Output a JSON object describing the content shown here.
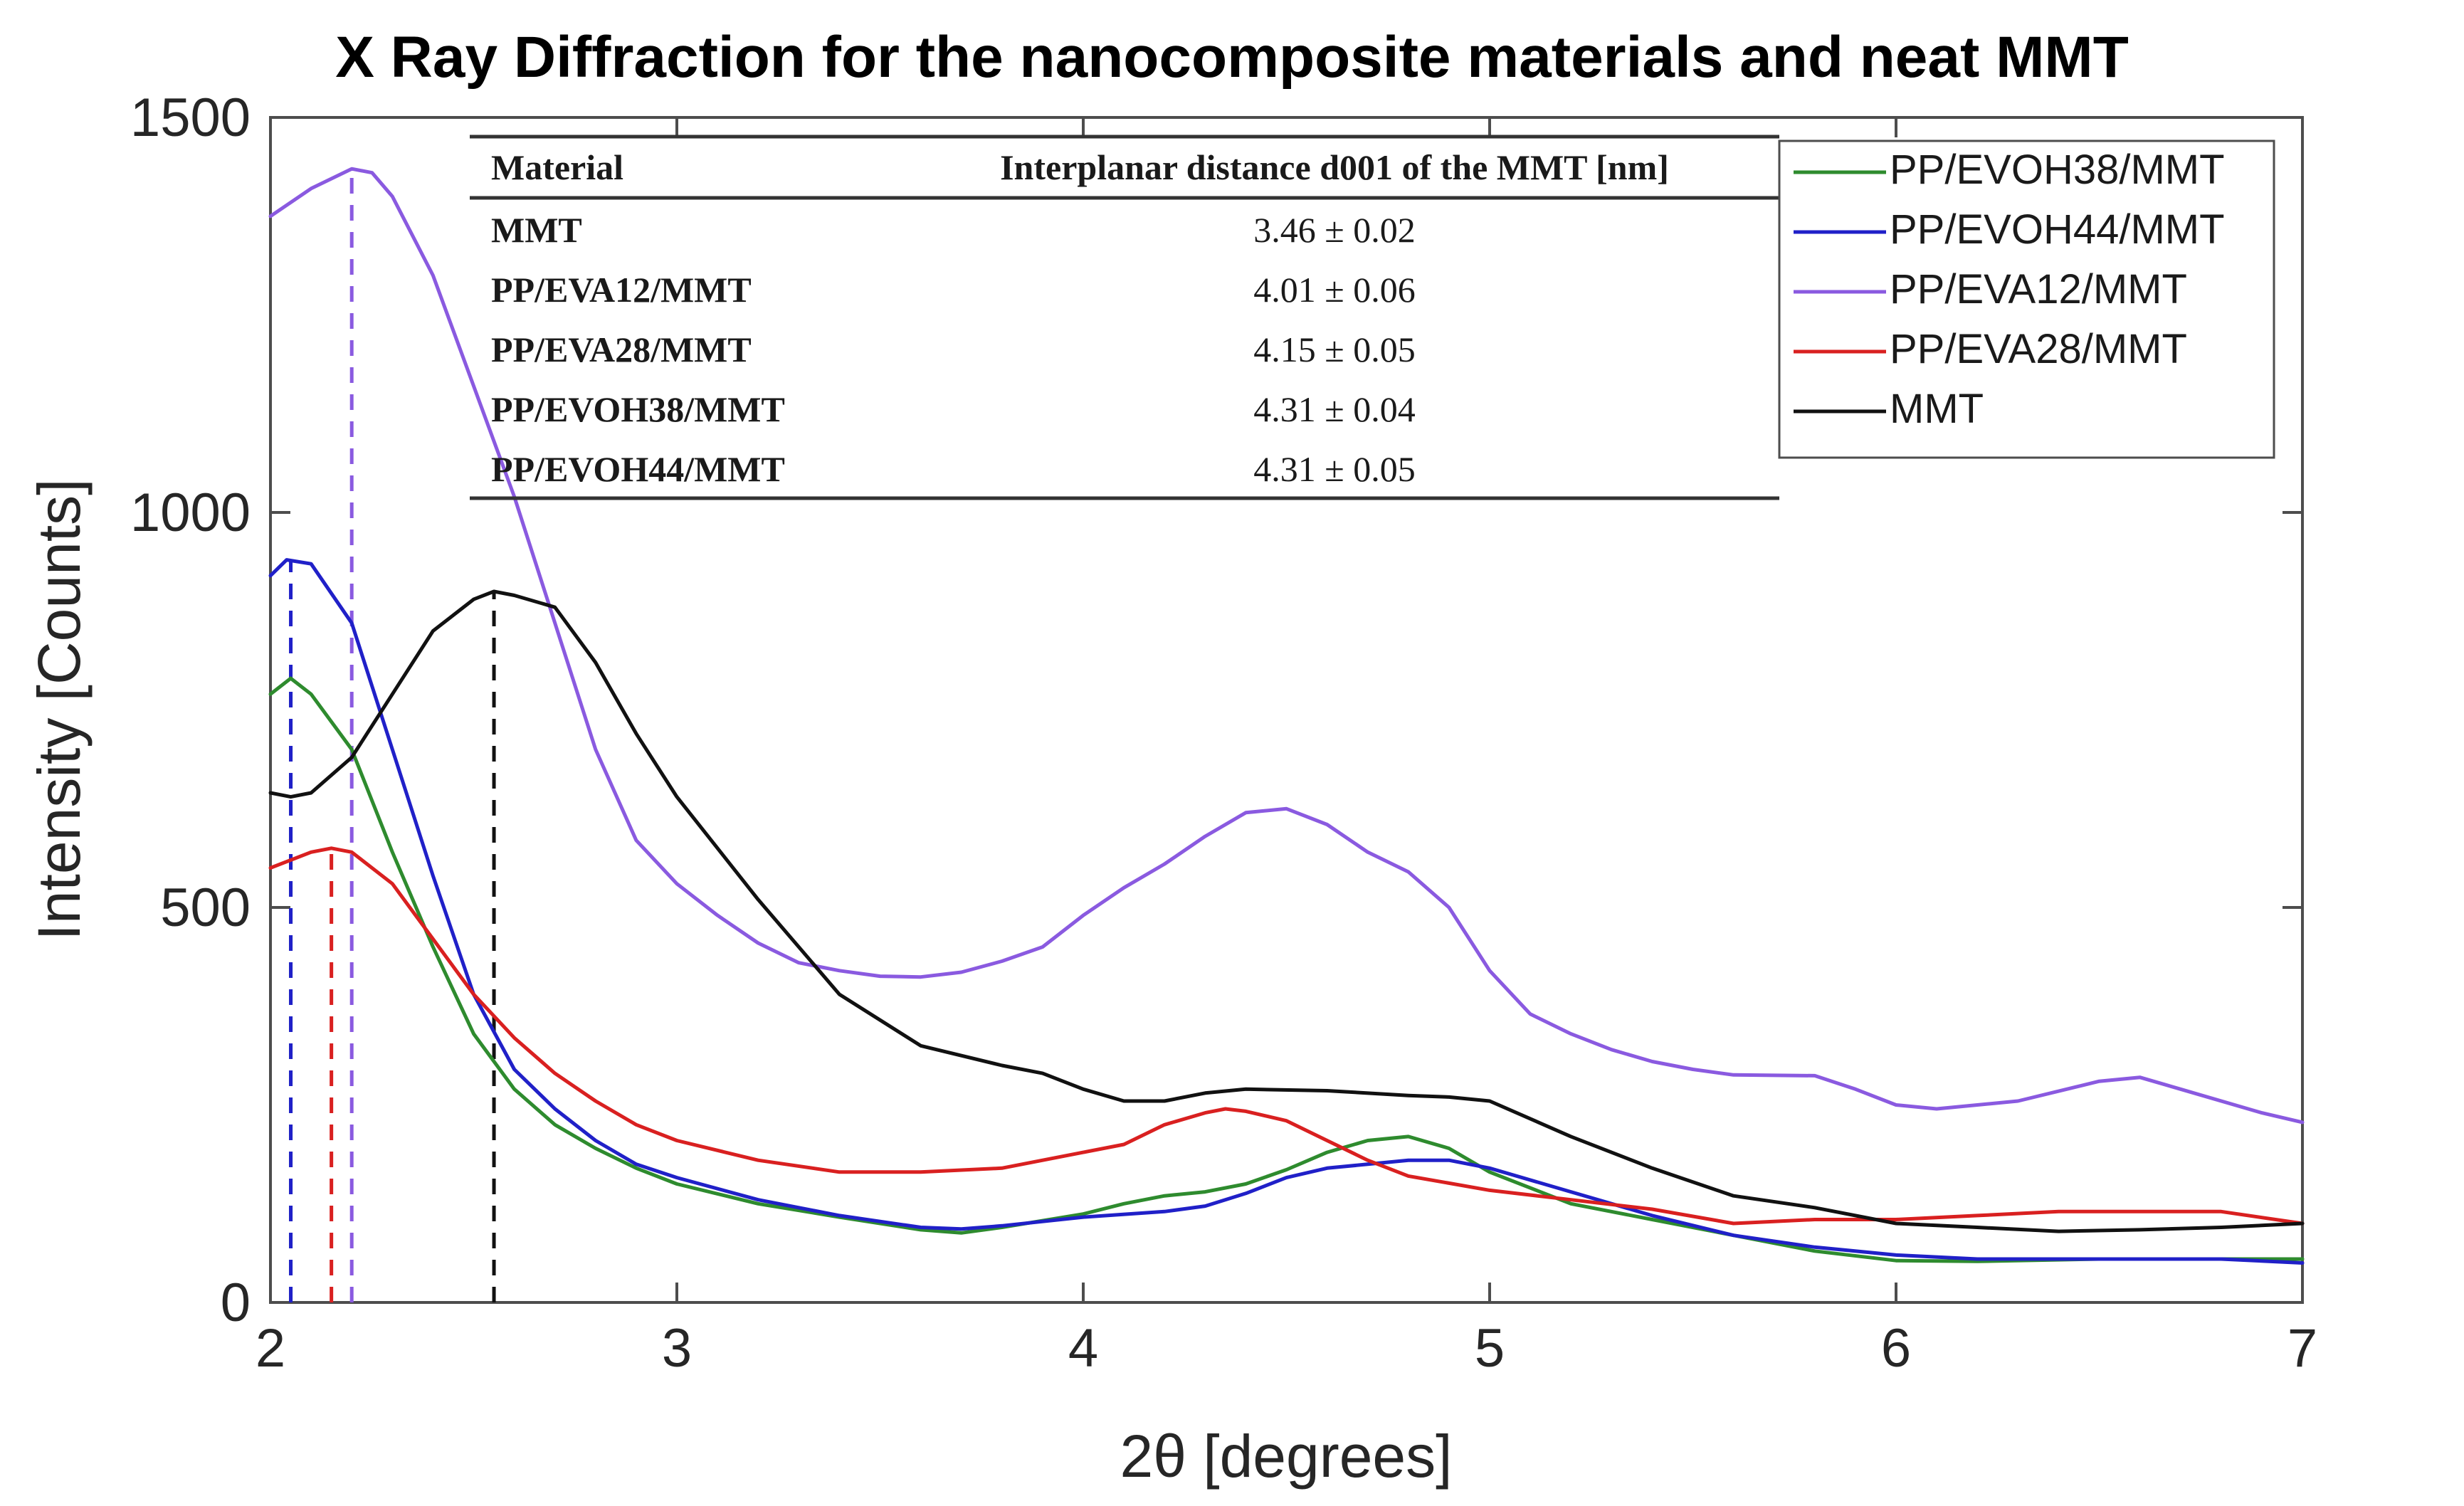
{
  "chart_data": {
    "type": "line",
    "title": "X Ray Diffraction for the nanocomposite materials and neat MMT",
    "xlabel": "2θ [degrees]",
    "ylabel": "Intensity [Counts]",
    "xlim": [
      2,
      7
    ],
    "ylim": [
      0,
      1500
    ],
    "xticks": [
      2,
      3,
      4,
      5,
      6,
      7
    ],
    "yticks": [
      0,
      500,
      1000,
      1500
    ],
    "grid": false,
    "legend_position": "top-right",
    "series": [
      {
        "name": "PP/EVOH38/MMT",
        "color": "#2e8b2e",
        "peak_x": 2.05,
        "points": [
          [
            2.0,
            770
          ],
          [
            2.05,
            790
          ],
          [
            2.1,
            770
          ],
          [
            2.2,
            700
          ],
          [
            2.3,
            570
          ],
          [
            2.4,
            450
          ],
          [
            2.5,
            340
          ],
          [
            2.6,
            270
          ],
          [
            2.7,
            225
          ],
          [
            2.8,
            195
          ],
          [
            2.9,
            170
          ],
          [
            3.0,
            150
          ],
          [
            3.2,
            125
          ],
          [
            3.4,
            108
          ],
          [
            3.6,
            92
          ],
          [
            3.7,
            88
          ],
          [
            3.8,
            95
          ],
          [
            4.0,
            112
          ],
          [
            4.1,
            125
          ],
          [
            4.2,
            135
          ],
          [
            4.3,
            140
          ],
          [
            4.4,
            150
          ],
          [
            4.5,
            168
          ],
          [
            4.6,
            190
          ],
          [
            4.7,
            205
          ],
          [
            4.8,
            210
          ],
          [
            4.9,
            195
          ],
          [
            5.0,
            165
          ],
          [
            5.2,
            125
          ],
          [
            5.4,
            105
          ],
          [
            5.6,
            85
          ],
          [
            5.8,
            65
          ],
          [
            6.0,
            53
          ],
          [
            6.2,
            52
          ],
          [
            6.5,
            55
          ],
          [
            6.8,
            55
          ],
          [
            7.0,
            55
          ]
        ]
      },
      {
        "name": "PP/EVOH44/MMT",
        "color": "#2020c8",
        "peak_x": 2.05,
        "points": [
          [
            2.0,
            920
          ],
          [
            2.04,
            940
          ],
          [
            2.1,
            935
          ],
          [
            2.2,
            860
          ],
          [
            2.3,
            700
          ],
          [
            2.4,
            540
          ],
          [
            2.5,
            390
          ],
          [
            2.6,
            295
          ],
          [
            2.7,
            245
          ],
          [
            2.8,
            205
          ],
          [
            2.9,
            175
          ],
          [
            3.0,
            158
          ],
          [
            3.2,
            130
          ],
          [
            3.4,
            110
          ],
          [
            3.6,
            95
          ],
          [
            3.7,
            93
          ],
          [
            3.8,
            97
          ],
          [
            4.0,
            108
          ],
          [
            4.2,
            115
          ],
          [
            4.3,
            122
          ],
          [
            4.4,
            138
          ],
          [
            4.5,
            158
          ],
          [
            4.6,
            170
          ],
          [
            4.7,
            175
          ],
          [
            4.8,
            180
          ],
          [
            4.9,
            180
          ],
          [
            5.0,
            170
          ],
          [
            5.2,
            140
          ],
          [
            5.4,
            110
          ],
          [
            5.6,
            85
          ],
          [
            5.8,
            70
          ],
          [
            6.0,
            60
          ],
          [
            6.2,
            55
          ],
          [
            6.5,
            55
          ],
          [
            6.8,
            55
          ],
          [
            7.0,
            50
          ]
        ]
      },
      {
        "name": "PP/EVA12/MMT",
        "color": "#8a5ae0",
        "peak_x": 2.2,
        "points": [
          [
            2.0,
            1375
          ],
          [
            2.1,
            1410
          ],
          [
            2.2,
            1435
          ],
          [
            2.25,
            1430
          ],
          [
            2.3,
            1400
          ],
          [
            2.4,
            1300
          ],
          [
            2.5,
            1160
          ],
          [
            2.6,
            1020
          ],
          [
            2.7,
            860
          ],
          [
            2.8,
            700
          ],
          [
            2.9,
            585
          ],
          [
            3.0,
            530
          ],
          [
            3.1,
            490
          ],
          [
            3.2,
            455
          ],
          [
            3.3,
            430
          ],
          [
            3.4,
            420
          ],
          [
            3.5,
            413
          ],
          [
            3.6,
            412
          ],
          [
            3.7,
            418
          ],
          [
            3.8,
            432
          ],
          [
            3.9,
            450
          ],
          [
            4.0,
            490
          ],
          [
            4.1,
            525
          ],
          [
            4.2,
            555
          ],
          [
            4.3,
            590
          ],
          [
            4.4,
            620
          ],
          [
            4.5,
            625
          ],
          [
            4.6,
            605
          ],
          [
            4.7,
            570
          ],
          [
            4.8,
            545
          ],
          [
            4.9,
            500
          ],
          [
            5.0,
            420
          ],
          [
            5.1,
            365
          ],
          [
            5.2,
            340
          ],
          [
            5.3,
            320
          ],
          [
            5.4,
            305
          ],
          [
            5.5,
            295
          ],
          [
            5.6,
            288
          ],
          [
            5.8,
            287
          ],
          [
            5.9,
            270
          ],
          [
            6.0,
            250
          ],
          [
            6.1,
            245
          ],
          [
            6.3,
            255
          ],
          [
            6.5,
            280
          ],
          [
            6.6,
            285
          ],
          [
            6.7,
            270
          ],
          [
            6.9,
            240
          ],
          [
            7.0,
            228
          ]
        ]
      },
      {
        "name": "PP/EVA28/MMT",
        "color": "#d92020",
        "peak_x": 2.15,
        "points": [
          [
            2.0,
            550
          ],
          [
            2.1,
            570
          ],
          [
            2.15,
            575
          ],
          [
            2.2,
            570
          ],
          [
            2.3,
            530
          ],
          [
            2.4,
            460
          ],
          [
            2.5,
            390
          ],
          [
            2.6,
            335
          ],
          [
            2.7,
            290
          ],
          [
            2.8,
            255
          ],
          [
            2.9,
            225
          ],
          [
            3.0,
            205
          ],
          [
            3.2,
            180
          ],
          [
            3.4,
            165
          ],
          [
            3.6,
            165
          ],
          [
            3.8,
            170
          ],
          [
            3.9,
            180
          ],
          [
            4.0,
            190
          ],
          [
            4.1,
            200
          ],
          [
            4.2,
            225
          ],
          [
            4.3,
            240
          ],
          [
            4.35,
            245
          ],
          [
            4.4,
            242
          ],
          [
            4.5,
            230
          ],
          [
            4.6,
            205
          ],
          [
            4.7,
            180
          ],
          [
            4.8,
            160
          ],
          [
            5.0,
            142
          ],
          [
            5.2,
            130
          ],
          [
            5.4,
            118
          ],
          [
            5.6,
            100
          ],
          [
            5.8,
            105
          ],
          [
            6.0,
            105
          ],
          [
            6.2,
            110
          ],
          [
            6.4,
            115
          ],
          [
            6.6,
            115
          ],
          [
            6.8,
            115
          ],
          [
            7.0,
            100
          ]
        ]
      },
      {
        "name": "MMT",
        "color": "#111111",
        "peak_x": 2.55,
        "points": [
          [
            2.0,
            645
          ],
          [
            2.05,
            640
          ],
          [
            2.1,
            645
          ],
          [
            2.2,
            690
          ],
          [
            2.3,
            770
          ],
          [
            2.4,
            850
          ],
          [
            2.5,
            890
          ],
          [
            2.55,
            900
          ],
          [
            2.6,
            895
          ],
          [
            2.7,
            880
          ],
          [
            2.8,
            810
          ],
          [
            2.9,
            720
          ],
          [
            3.0,
            640
          ],
          [
            3.2,
            510
          ],
          [
            3.4,
            390
          ],
          [
            3.6,
            325
          ],
          [
            3.8,
            300
          ],
          [
            3.9,
            290
          ],
          [
            4.0,
            270
          ],
          [
            4.1,
            255
          ],
          [
            4.2,
            255
          ],
          [
            4.3,
            265
          ],
          [
            4.4,
            270
          ],
          [
            4.6,
            268
          ],
          [
            4.8,
            262
          ],
          [
            4.9,
            260
          ],
          [
            5.0,
            255
          ],
          [
            5.2,
            210
          ],
          [
            5.4,
            170
          ],
          [
            5.6,
            135
          ],
          [
            5.8,
            120
          ],
          [
            6.0,
            100
          ],
          [
            6.2,
            95
          ],
          [
            6.4,
            90
          ],
          [
            6.6,
            92
          ],
          [
            6.8,
            95
          ],
          [
            7.0,
            100
          ]
        ]
      }
    ],
    "inset_table": {
      "header_material": "Material",
      "header_distance": "Interplanar distance d001 of the MMT [nm]",
      "rows": [
        {
          "material": "MMT",
          "value": "3.46 ± 0.02"
        },
        {
          "material": "PP/EVA12/MMT",
          "value": "4.01 ± 0.06"
        },
        {
          "material": "PP/EVA28/MMT",
          "value": "4.15 ± 0.05"
        },
        {
          "material": "PP/EVOH38/MMT",
          "value": "4.31 ± 0.04"
        },
        {
          "material": "PP/EVOH44/MMT",
          "value": "4.31 ± 0.05"
        }
      ]
    },
    "legend_order": [
      "PP/EVOH38/MMT",
      "PP/EVOH44/MMT",
      "PP/EVA12/MMT",
      "PP/EVA28/MMT",
      "MMT"
    ]
  }
}
